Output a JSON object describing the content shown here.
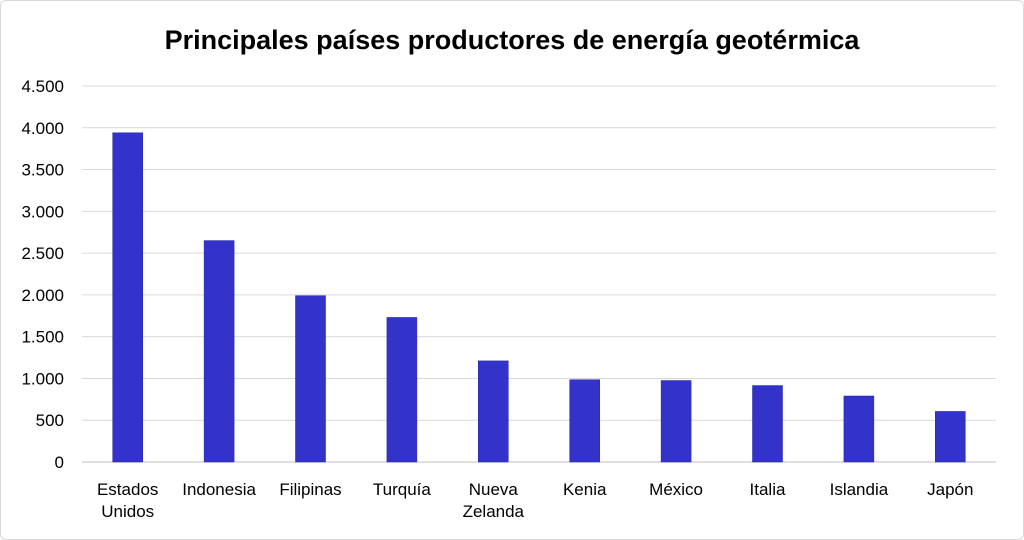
{
  "chart_data": {
    "type": "bar",
    "title": "Principales países productores de energía geotérmica",
    "xlabel": "",
    "ylabel": "",
    "categories": [
      [
        "Estados",
        "Unidos"
      ],
      [
        "Indonesia"
      ],
      [
        "Filipinas"
      ],
      [
        "Turquía"
      ],
      [
        "Nueva",
        "Zelanda"
      ],
      [
        "Kenia"
      ],
      [
        "México"
      ],
      [
        "Italia"
      ],
      [
        "Islandia"
      ],
      [
        "Japón"
      ]
    ],
    "values": [
      3940,
      2650,
      1990,
      1730,
      1210,
      985,
      975,
      915,
      790,
      605
    ],
    "ylim": [
      0,
      4500
    ],
    "yticks": [
      0,
      500,
      1000,
      1500,
      2000,
      2500,
      3000,
      3500,
      4000,
      4500
    ],
    "ytick_labels": [
      "0",
      "500",
      "1.000",
      "1.500",
      "2.000",
      "2.500",
      "3.000",
      "3.500",
      "4.000",
      "4.500"
    ],
    "grid": true,
    "legend": "none",
    "bar_color": "#3333cc"
  }
}
